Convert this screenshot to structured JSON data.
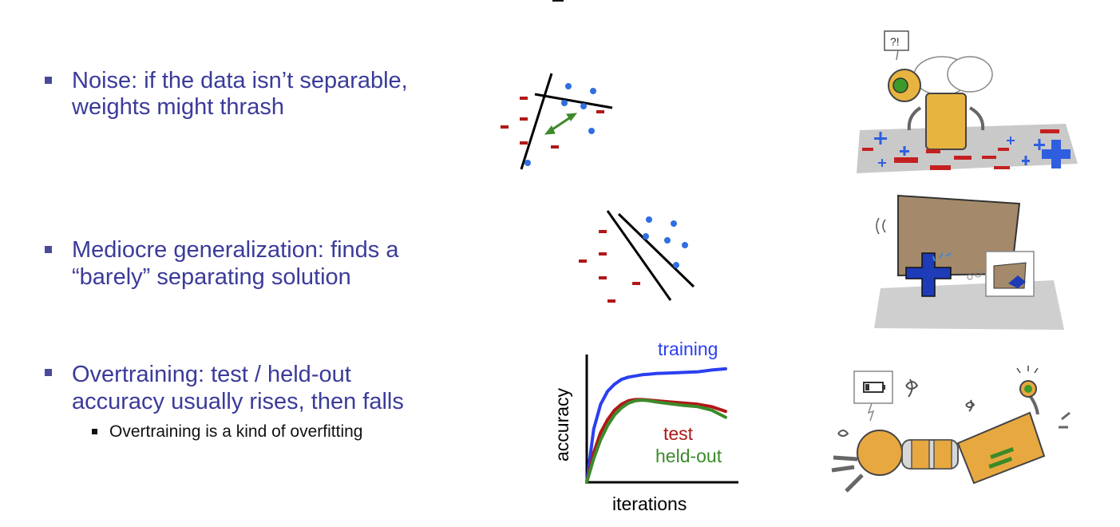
{
  "slide": {
    "bullets": [
      {
        "line1": "Noise: if the data isn’t separable,",
        "line2": "weights might thrash"
      },
      {
        "line1": "Mediocre generalization: finds a",
        "line2": "“barely” separating solution"
      },
      {
        "line1": "Overtraining: test / held-out",
        "line2": "accuracy usually rises, then falls",
        "sub": "Overtraining is a kind of overfitting"
      }
    ],
    "colors": {
      "bullet_text": "#3b3b9a",
      "plus": "#2f6fe0",
      "minus": "#b01818",
      "arrow": "#3c8a2a"
    },
    "noise_illustration": {
      "bubble_text": "?!"
    }
  },
  "chart_data": {
    "type": "line",
    "xlabel": "iterations",
    "ylabel": "accuracy",
    "series": [
      {
        "name": "training",
        "color": "#2a3ff0",
        "x": [
          0,
          1,
          2,
          3,
          4,
          5,
          6,
          7,
          8,
          9,
          10,
          12,
          14,
          16,
          18,
          20
        ],
        "values": [
          0,
          45,
          66,
          77,
          83,
          87,
          89,
          90,
          91,
          91.5,
          92,
          92.5,
          93,
          93.5,
          95,
          96
        ]
      },
      {
        "name": "test",
        "color": "#b01818",
        "x": [
          0,
          1,
          2,
          3,
          4,
          5,
          6,
          7,
          8,
          9,
          10,
          12,
          14,
          16,
          18,
          20
        ],
        "values": [
          0,
          25,
          42,
          53,
          61,
          66,
          69,
          70,
          70,
          69.5,
          69,
          68,
          67,
          66,
          64,
          60
        ]
      },
      {
        "name": "held-out",
        "color": "#3c8a2a",
        "x": [
          0,
          1,
          2,
          3,
          4,
          5,
          6,
          7,
          8,
          9,
          10,
          12,
          14,
          16,
          18,
          20
        ],
        "values": [
          0,
          20,
          36,
          48,
          57,
          63,
          67,
          69,
          69.5,
          69,
          68,
          66.5,
          65,
          64,
          61,
          55
        ]
      }
    ]
  }
}
